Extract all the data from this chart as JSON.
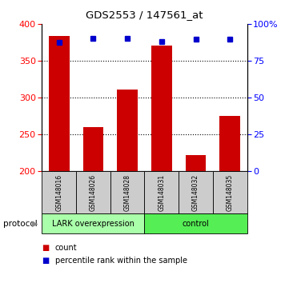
{
  "title": "GDS2553 / 147561_at",
  "samples": [
    "GSM148016",
    "GSM148026",
    "GSM148028",
    "GSM148031",
    "GSM148032",
    "GSM148035"
  ],
  "red_values": [
    384,
    260,
    311,
    371,
    222,
    275
  ],
  "blue_values": [
    375,
    381,
    381,
    376,
    379,
    379
  ],
  "red_baseline": 200,
  "ylim_left": [
    200,
    400
  ],
  "ylim_right": [
    0,
    100
  ],
  "yticks_left": [
    200,
    250,
    300,
    350,
    400
  ],
  "yticks_right": [
    0,
    25,
    50,
    75,
    100
  ],
  "ytick_labels_right": [
    "0",
    "25",
    "50",
    "75",
    "100%"
  ],
  "group1_label": "LARK overexpression",
  "group2_label": "control",
  "protocol_label": "protocol",
  "legend_count": "count",
  "legend_percentile": "percentile rank within the sample",
  "bar_color": "#cc0000",
  "square_color": "#0000cc",
  "group1_color": "#aaffaa",
  "group2_color": "#55ee55",
  "label_box_color": "#cccccc"
}
